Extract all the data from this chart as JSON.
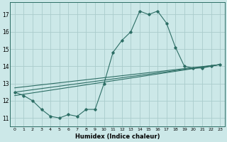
{
  "xlabel": "Humidex (Indice chaleur)",
  "bg_color": "#cce8e8",
  "grid_color": "#aacccc",
  "line_color": "#2d6e65",
  "xlim": [
    -0.5,
    23.5
  ],
  "ylim": [
    10.5,
    17.7
  ],
  "yticks": [
    11,
    12,
    13,
    14,
    15,
    16,
    17
  ],
  "xticks": [
    0,
    1,
    2,
    3,
    4,
    5,
    6,
    7,
    8,
    9,
    10,
    11,
    12,
    13,
    14,
    15,
    16,
    17,
    18,
    19,
    20,
    21,
    22,
    23
  ],
  "main_x": [
    0,
    1,
    2,
    3,
    4,
    5,
    6,
    7,
    8,
    9,
    10,
    11,
    12,
    13,
    14,
    15,
    16,
    17,
    18,
    19,
    20,
    21,
    22,
    23
  ],
  "main_y": [
    12.5,
    12.3,
    12.0,
    11.5,
    11.1,
    11.0,
    11.2,
    11.1,
    11.5,
    11.5,
    13.0,
    14.8,
    15.5,
    16.0,
    17.2,
    17.0,
    17.2,
    16.5,
    15.1,
    14.0,
    13.9,
    13.9,
    14.0,
    14.1
  ],
  "trend1_x": [
    0,
    23
  ],
  "trend1_y": [
    12.5,
    14.1
  ],
  "trend2_x": [
    0,
    23
  ],
  "trend2_y": [
    12.5,
    14.1
  ],
  "trend3_x": [
    0,
    23
  ],
  "trend3_y": [
    12.4,
    14.1
  ],
  "figwidth": 3.2,
  "figheight": 2.0,
  "dpi": 100
}
